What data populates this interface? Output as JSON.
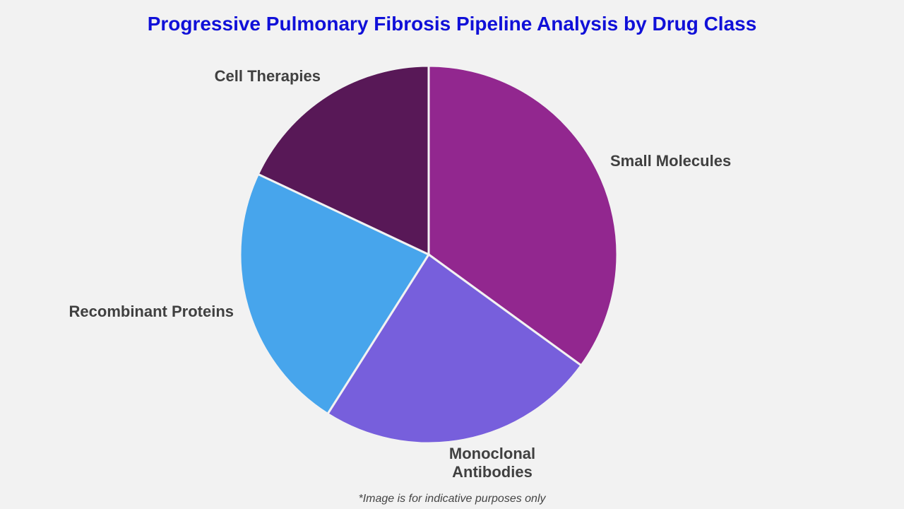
{
  "chart_data": {
    "type": "pie",
    "title": "Progressive Pulmonary Fibrosis Pipeline Analysis by Drug Class",
    "categories": [
      "Small Molecules",
      "Monoclonal Antibodies",
      "Recombinant Proteins",
      "Cell Therapies"
    ],
    "values": [
      35,
      24,
      23,
      18
    ],
    "colors": [
      "#92278f",
      "#775fdc",
      "#47a5ec",
      "#581857"
    ],
    "footnote": "*Image is for indicative purposes only"
  }
}
